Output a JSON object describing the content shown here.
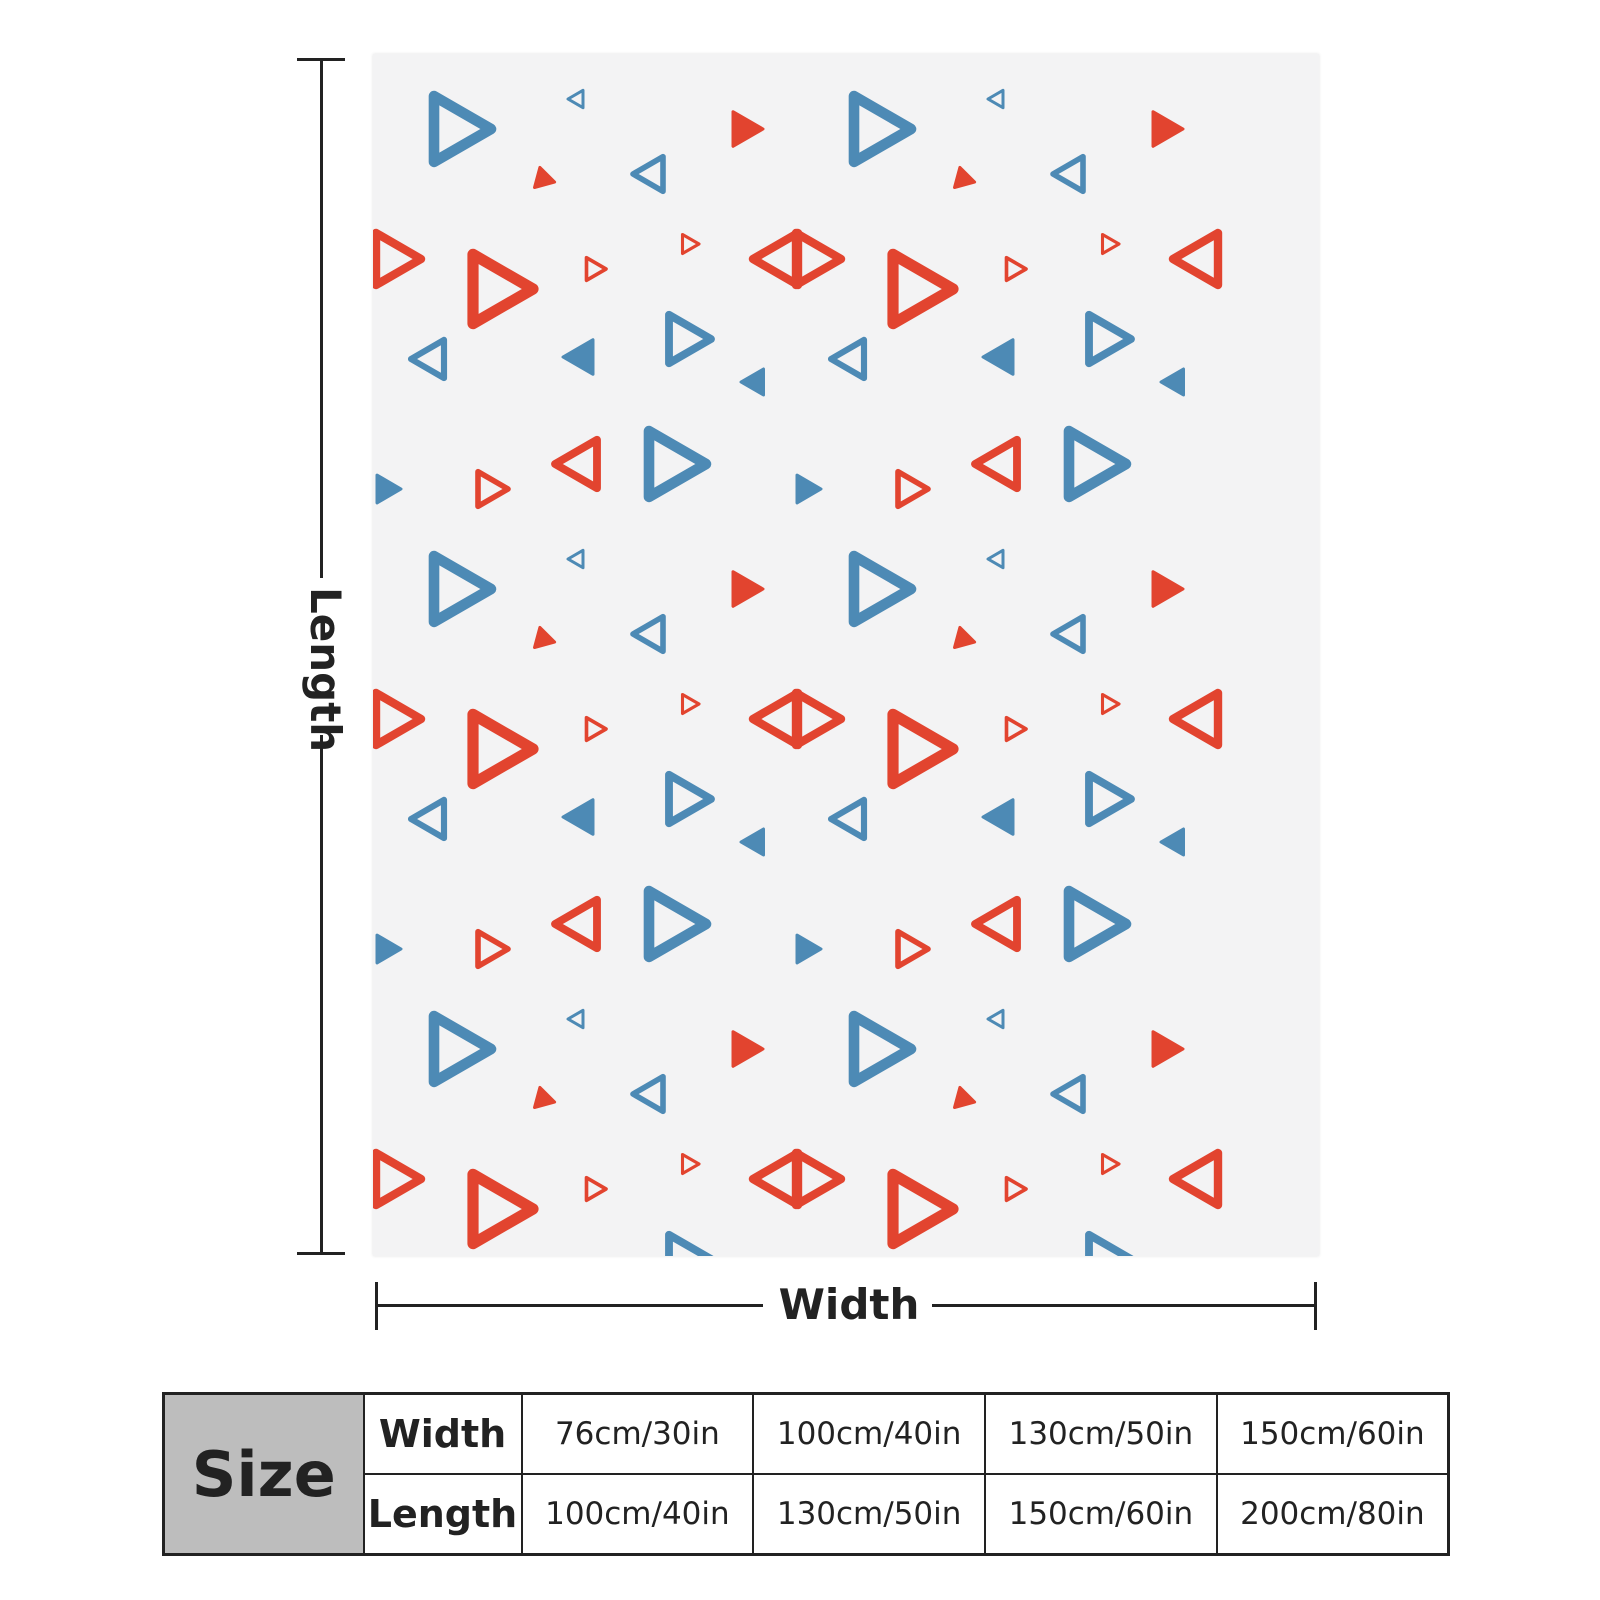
{
  "product": {
    "pattern": {
      "colors": {
        "red": "#e2442f",
        "blue": "#4d8ab5",
        "background": "#f3f3f4"
      },
      "shape": "triangle-icon"
    }
  },
  "dimensions": {
    "length_label": "Length",
    "width_label": "Width"
  },
  "size_table": {
    "header": "Size",
    "rows": [
      {
        "label": "Width",
        "values": [
          "76cm/30in",
          "100cm/40in",
          "130cm/50in",
          "150cm/60in"
        ]
      },
      {
        "label": "Length",
        "values": [
          "100cm/40in",
          "130cm/50in",
          "150cm/60in",
          "200cm/80in"
        ]
      }
    ]
  }
}
